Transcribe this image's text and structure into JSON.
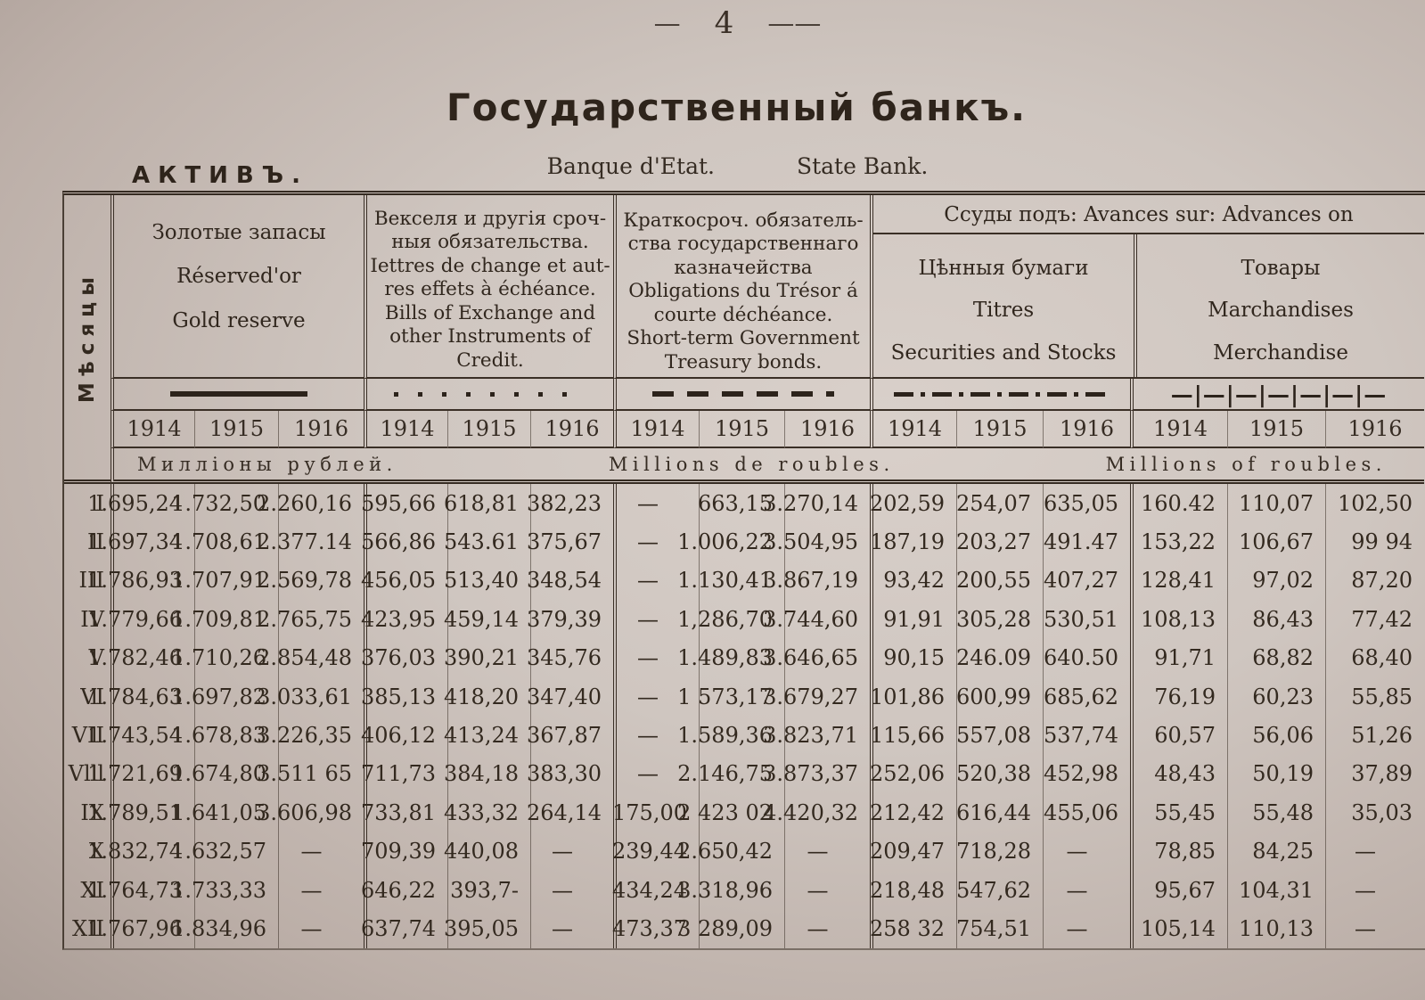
{
  "page": {
    "dash_left": "—",
    "number": "4",
    "dash_right": "——"
  },
  "header": {
    "title": "Государственный  банкъ.",
    "subtitle_fr": "Banque d'Etat.",
    "subtitle_en": "State Bank.",
    "section_label": "АКТИВЪ."
  },
  "table": {
    "months_axis_label": "Мѣсяцы",
    "advances_span_label": "Ссуды подъ: Avances sur: Advances on",
    "unit_ru": "Милліоны рублей.",
    "unit_fr": "Millions de roubles.",
    "unit_en": "Millions of roubles.",
    "years": [
      "1914",
      "1915",
      "1916"
    ],
    "ink_color": "#31271e",
    "paper_color": "#cfc6c0",
    "groups": [
      {
        "name": "gold-reserve",
        "legend": "solid",
        "lines": [
          "Золотые запасы",
          "Réserved'or",
          "Gold reserve"
        ]
      },
      {
        "name": "bills-of-exchange",
        "legend": "dotted",
        "lines": [
          "Векселя и другія сроч-",
          "ныя обязательства.",
          "Iettres de change et aut-",
          "res effets à échéance.",
          "Bills of Exchange and",
          "other Instruments of",
          "Credit."
        ]
      },
      {
        "name": "treasury-bonds",
        "legend": "dashed",
        "lines": [
          "Краткосроч. обязатель-",
          "ства государственнаго",
          "казначейства",
          "Obligations du Trésor á",
          "courte déchéance.",
          "Short-term Government",
          "Treasury bonds."
        ]
      },
      {
        "name": "securities",
        "legend": "dash-dot",
        "lines": [
          "Цѣнныя бумаги",
          "Titres",
          "Securities and Stocks"
        ]
      },
      {
        "name": "merchandise",
        "legend": "dash-bar",
        "lines": [
          "Товары",
          "Marchandises",
          "Merchandise"
        ]
      }
    ],
    "legend_glyphs": {
      "dash-bar": "—|—|—|—|—|—|—"
    },
    "rows": [
      {
        "month": "I",
        "values": [
          "1.695,24",
          "1.732,50",
          "2.260,16",
          "595,66",
          "618,81",
          "382,23",
          "—",
          "663,15",
          "3.270,14",
          "202,59",
          "254,07",
          "635,05",
          "160.42",
          "110,07",
          "102,50"
        ]
      },
      {
        "month": "II",
        "values": [
          "1.697,34",
          "1.708,61",
          "2.377.14",
          "566,86",
          "543.61",
          "375,67",
          "—",
          "1.006,22",
          "3.504,95",
          "187,19",
          "203,27",
          "491.47",
          "153,22",
          "106,67",
          "99 94"
        ]
      },
      {
        "month": "III",
        "values": [
          "1.786,93",
          "1.707,91",
          "2.569,78",
          "456,05",
          "513,40",
          "348,54",
          "—",
          "1.130,41",
          "3.867,19",
          "93,42",
          "200,55",
          "407,27",
          "128,41",
          "97,02",
          "87,20"
        ]
      },
      {
        "month": "IV",
        "values": [
          "1.779,66",
          "1.709,81",
          "2.765,75",
          "423,95",
          "459,14",
          "379,39",
          "—",
          "1,286,70",
          "3.744,60",
          "91,91",
          "305,28",
          "530,51",
          "108,13",
          "86,43",
          "77,42"
        ]
      },
      {
        "month": "V",
        "values": [
          "1.782,46",
          "1.710,26",
          "2.854,48",
          "376,03",
          "390,21",
          "345,76",
          "—",
          "1.489,83",
          "3.646,65",
          "90,15",
          "246.09",
          "640.50",
          "91,71",
          "68,82",
          "68,40"
        ]
      },
      {
        "month": "VI",
        "values": [
          "1.784,63",
          "1.697,82",
          "3.033,61",
          "385,13",
          "418,20",
          "347,40",
          "—",
          "1 573,17",
          "3.679,27",
          "101,86",
          "600,99",
          "685,62",
          "76,19",
          "60,23",
          "55,85"
        ]
      },
      {
        "month": "VII",
        "values": [
          "1.743,54",
          "1.678,83",
          "3.226,35",
          "406,12",
          "413,24",
          "367,87",
          "—",
          "1.589,36",
          "3.823,71",
          "115,66",
          "557,08",
          "537,74",
          "60,57",
          "56,06",
          "51,26"
        ]
      },
      {
        "month": "Vlll",
        "values": [
          "1.721,69",
          "1.674,80",
          "3.511 65",
          "711,73",
          "384,18",
          "383,30",
          "—",
          "2.146,75",
          "3.873,37",
          "252,06",
          "520,38",
          "452,98",
          "48,43",
          "50,19",
          "37,89"
        ]
      },
      {
        "month": "IX",
        "values": [
          "1.789,51",
          "1.641,05",
          "3.606,98",
          "733,81",
          "433,32",
          "264,14",
          "175,00",
          "2 423 02",
          "4.420,32",
          "212,42",
          "616,44",
          "455,06",
          "55,45",
          "55,48",
          "35,03"
        ]
      },
      {
        "month": "X",
        "values": [
          "1.832,74",
          "1.632,57",
          "—",
          "709,39",
          "440,08",
          "—",
          "239,44",
          "2.650,42",
          "—",
          "209,47",
          "718,28",
          "—",
          "78,85",
          "84,25",
          "—"
        ]
      },
      {
        "month": "XI",
        "values": [
          "1.764,73",
          "1.733,33",
          "—",
          "646,22",
          "393,7-",
          "—",
          "434,24",
          "3.318,96",
          "—",
          "218,48",
          "547,62",
          "—",
          "95,67",
          "104,31",
          "—"
        ]
      },
      {
        "month": "XII",
        "values": [
          "1.767,96",
          "1.834,96",
          "—",
          "637,74",
          "395,05",
          "—",
          "473,37",
          "3 289,09",
          "—",
          "258 32",
          "754,51",
          "—",
          "105,14",
          "110,13",
          "—"
        ]
      }
    ]
  }
}
